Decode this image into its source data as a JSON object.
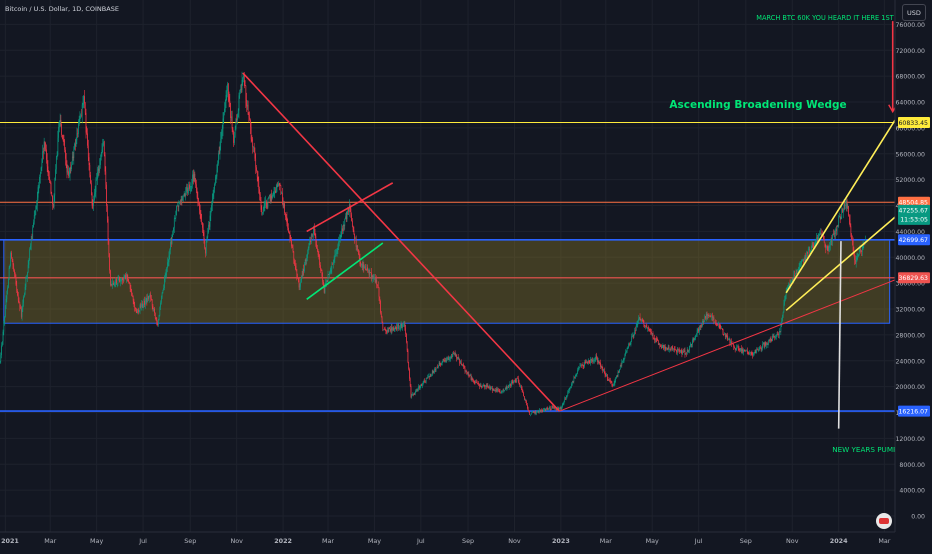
{
  "chart_data": {
    "type": "candlestick",
    "symbol_title": "Bitcoin / U.S. Dollar, 1D, COINBASE",
    "currency_button": "USD",
    "ylim": [
      0,
      76000
    ],
    "y_ticks": [
      "76000.00",
      "72000.00",
      "68000.00",
      "64000.00",
      "60000.00",
      "56000.00",
      "52000.00",
      "48000.00",
      "44000.00",
      "40000.00",
      "36000.00",
      "32000.00",
      "28000.00",
      "24000.00",
      "20000.00",
      "16000.00",
      "12000.00",
      "8000.00",
      "4000.00",
      "0.00"
    ],
    "y_tick_values": [
      76000,
      72000,
      68000,
      64000,
      60000,
      56000,
      52000,
      48000,
      44000,
      40000,
      36000,
      32000,
      28000,
      24000,
      20000,
      16000,
      12000,
      8000,
      4000,
      0
    ],
    "x_range": [
      "2020-12-25",
      "2024-03-15"
    ],
    "x_ticks": [
      "2021",
      "Mar",
      "May",
      "Jul",
      "Sep",
      "Nov",
      "2022",
      "Mar",
      "May",
      "Jul",
      "Sep",
      "Nov",
      "2023",
      "Mar",
      "May",
      "Jul",
      "Sep",
      "Nov",
      "2024",
      "Mar"
    ],
    "x_tick_dates": [
      "2021-01-01",
      "2021-03-01",
      "2021-05-01",
      "2021-07-01",
      "2021-09-01",
      "2021-11-01",
      "2022-01-01",
      "2022-03-01",
      "2022-05-01",
      "2022-07-01",
      "2022-09-01",
      "2022-11-01",
      "2023-01-01",
      "2023-03-01",
      "2023-05-01",
      "2023-07-01",
      "2023-09-01",
      "2023-11-01",
      "2024-01-01",
      "2024-03-01"
    ],
    "price_path": [
      [
        "2020-12-25",
        23800
      ],
      [
        "2021-01-08",
        40500
      ],
      [
        "2021-01-22",
        31000
      ],
      [
        "2021-02-08",
        46000
      ],
      [
        "2021-02-21",
        57500
      ],
      [
        "2021-03-05",
        48000
      ],
      [
        "2021-03-13",
        61500
      ],
      [
        "2021-03-25",
        52000
      ],
      [
        "2021-04-14",
        64500
      ],
      [
        "2021-04-25",
        48000
      ],
      [
        "2021-05-10",
        58000
      ],
      [
        "2021-05-19",
        36000
      ],
      [
        "2021-06-10",
        37000
      ],
      [
        "2021-06-22",
        31500
      ],
      [
        "2021-07-10",
        34000
      ],
      [
        "2021-07-20",
        29800
      ],
      [
        "2021-08-14",
        47500
      ],
      [
        "2021-09-06",
        52500
      ],
      [
        "2021-09-21",
        41000
      ],
      [
        "2021-10-20",
        66000
      ],
      [
        "2021-10-28",
        58000
      ],
      [
        "2021-11-09",
        68500
      ],
      [
        "2021-12-04",
        47000
      ],
      [
        "2021-12-27",
        51500
      ],
      [
        "2022-01-22",
        35500
      ],
      [
        "2022-02-10",
        44500
      ],
      [
        "2022-02-24",
        35000
      ],
      [
        "2022-03-29",
        47800
      ],
      [
        "2022-04-11",
        39500
      ],
      [
        "2022-05-05",
        36000
      ],
      [
        "2022-05-12",
        28500
      ],
      [
        "2022-06-10",
        29500
      ],
      [
        "2022-06-18",
        18500
      ],
      [
        "2022-07-30",
        24000
      ],
      [
        "2022-08-14",
        25000
      ],
      [
        "2022-09-10",
        20500
      ],
      [
        "2022-10-15",
        19200
      ],
      [
        "2022-11-05",
        21300
      ],
      [
        "2022-11-21",
        15800
      ],
      [
        "2022-12-20",
        16800
      ],
      [
        "2023-01-01",
        16600
      ],
      [
        "2023-01-25",
        23000
      ],
      [
        "2023-02-16",
        24500
      ],
      [
        "2023-03-10",
        20000
      ],
      [
        "2023-04-14",
        30500
      ],
      [
        "2023-05-12",
        26300
      ],
      [
        "2023-06-15",
        25200
      ],
      [
        "2023-07-13",
        31500
      ],
      [
        "2023-08-17",
        26000
      ],
      [
        "2023-09-11",
        25100
      ],
      [
        "2023-10-16",
        28500
      ],
      [
        "2023-10-24",
        34800
      ],
      [
        "2023-12-08",
        44000
      ],
      [
        "2023-12-18",
        41000
      ],
      [
        "2024-01-11",
        48900
      ],
      [
        "2024-01-23",
        39000
      ],
      [
        "2024-02-05",
        42800
      ]
    ],
    "horizontal_levels": [
      {
        "value": 60833.45,
        "label": "60833.45",
        "color": "#ffeb3b",
        "text_color": "#131722"
      },
      {
        "value": 48504.85,
        "label": "48504.85",
        "color": "#ff7043",
        "text_color": "#ffffff"
      },
      {
        "value": 42699.67,
        "label": "42699.67",
        "color": "#2962ff",
        "text_color": "#ffffff"
      },
      {
        "value": 36829.63,
        "label": "36829.63",
        "color": "#ef5350",
        "text_color": "#ffffff"
      },
      {
        "value": 16216.07,
        "label": "16216.07",
        "color": "#2962ff",
        "text_color": "#ffffff"
      }
    ],
    "current_price": {
      "value": 47255.67,
      "label": "47255.67",
      "countdown": "11:53:05",
      "color": "#089981"
    },
    "range_box": {
      "x_start": "2020-12-30",
      "x_end": "2024-03-08",
      "top": 42699.67,
      "bottom": 29800
    },
    "annotations": [
      {
        "text": "MARCH BTC 60K YOU HEARD IT HERE 1ST",
        "color": "#00e676"
      },
      {
        "text": "Ascending Broadening Wedge",
        "color": "#00e676"
      },
      {
        "text": "NEW YEARS PUMP J",
        "color": "#00e676"
      }
    ],
    "trendlines": [
      {
        "name": "downtrend",
        "color": "#f23645",
        "from": [
          "2021-11-09",
          68500
        ],
        "to": [
          "2022-12-30",
          16200
        ]
      },
      {
        "name": "upper-channel",
        "color": "#f23645",
        "from": [
          "2022-02-01",
          44000
        ],
        "to": [
          "2022-05-25",
          51500
        ]
      },
      {
        "name": "green-support",
        "color": "#00e676",
        "from": [
          "2022-02-01",
          33500
        ],
        "to": [
          "2022-05-12",
          42200
        ]
      },
      {
        "name": "long-support",
        "color": "#f23645",
        "from": [
          "2022-12-30",
          16200
        ],
        "to": [
          "2024-03-15",
          36500
        ]
      },
      {
        "name": "wedge-upper",
        "color": "#ffee58",
        "from": [
          "2023-10-24",
          34500
        ],
        "to": [
          "2024-03-15",
          61200
        ]
      },
      {
        "name": "wedge-lower",
        "color": "#ffee58",
        "from": [
          "2023-10-24",
          31800
        ],
        "to": [
          "2024-03-15",
          46200
        ]
      },
      {
        "name": "pump-arrow",
        "color": "#e0e0e0",
        "from": [
          "2024-01-04",
          42500
        ],
        "to": [
          "2024-01-01",
          13500
        ]
      },
      {
        "name": "march-arrow",
        "color": "#f23645",
        "from": [
          "2024-03-12",
          76500
        ],
        "to": [
          "2024-03-12",
          62500
        ]
      }
    ]
  }
}
